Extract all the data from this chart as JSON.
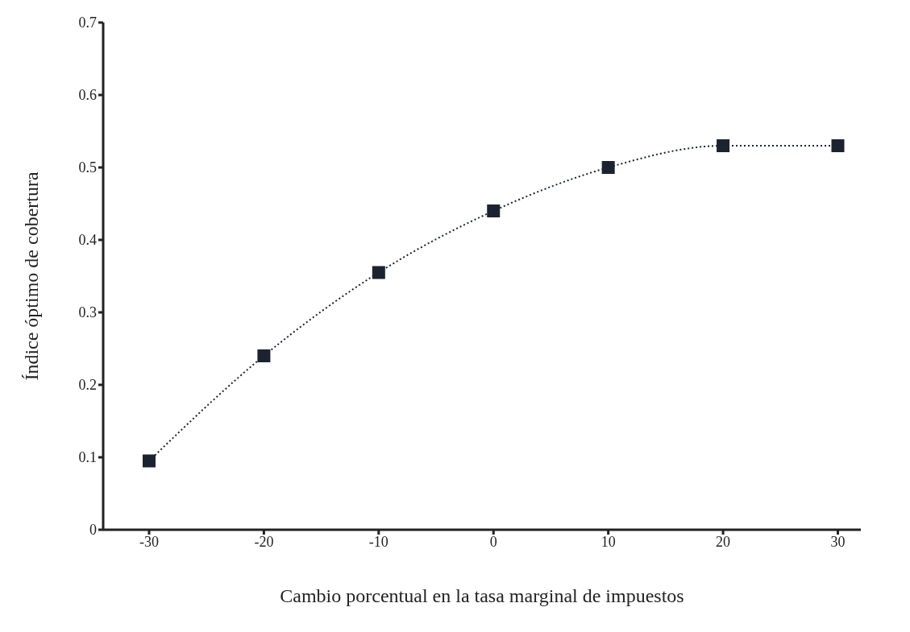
{
  "chart_data": {
    "type": "line",
    "xlabel": "Cambio porcentual en la tasa marginal de impuestos",
    "ylabel": "Índice óptimo de cobertura",
    "x": [
      -30,
      -20,
      -10,
      0,
      10,
      20,
      30
    ],
    "series": [
      {
        "color": "#1c2330",
        "values": [
          0.095,
          0.24,
          0.355,
          0.44,
          0.5,
          0.53,
          0.53
        ]
      }
    ],
    "xlim": [
      -34,
      32
    ],
    "xticks": [
      -30,
      -20,
      -10,
      0,
      10,
      20,
      30
    ],
    "ylim": [
      0,
      0.7
    ],
    "yticks": [
      0,
      0.1,
      0.2,
      0.3,
      0.4,
      0.5,
      0.6,
      0.7
    ],
    "marker": "square",
    "line_style": "dotted",
    "grid": false,
    "legend": false
  }
}
